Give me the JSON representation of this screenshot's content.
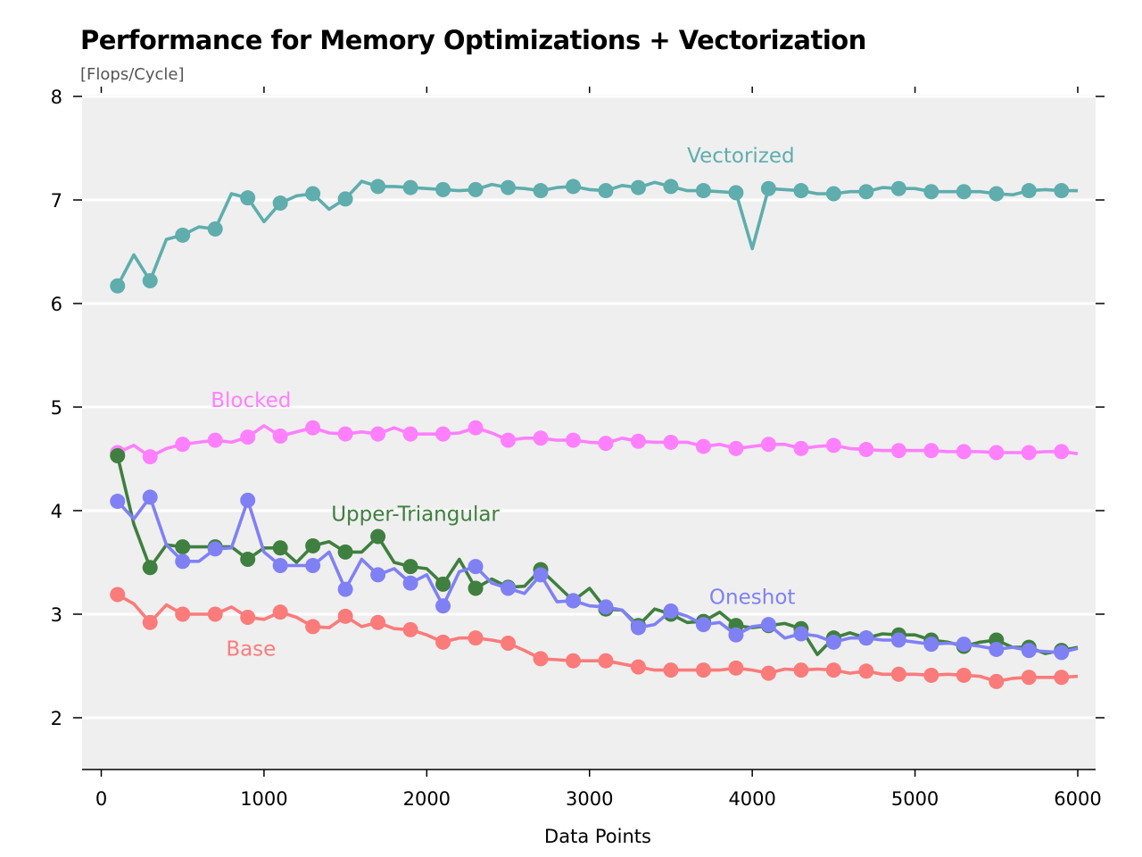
{
  "chart_data": {
    "type": "line",
    "title": "Performance for Memory Optimizations + Vectorization",
    "ylabel": "[Flops/Cycle]",
    "xlabel": "Data Points",
    "xlim": [
      0,
      6100
    ],
    "ylim": [
      1.5,
      8
    ],
    "x_ticks": [
      0,
      1000,
      2000,
      3000,
      4000,
      5000,
      6000
    ],
    "y_ticks": [
      2,
      3,
      4,
      5,
      6,
      7,
      8
    ],
    "grid": "horizontal",
    "legend": "inline labels",
    "background": "#efefef",
    "series": [
      {
        "name": "Vectorized",
        "color": "#5fadad",
        "label_at": [
          3930,
          7.36
        ],
        "x": [
          100,
          200,
          300,
          400,
          500,
          600,
          700,
          800,
          900,
          1000,
          1100,
          1200,
          1300,
          1400,
          1500,
          1600,
          1700,
          1800,
          1900,
          2000,
          2100,
          2200,
          2300,
          2400,
          2500,
          2600,
          2700,
          2800,
          2900,
          3000,
          3100,
          3200,
          3300,
          3400,
          3500,
          3600,
          3700,
          3800,
          3900,
          4000,
          4100,
          4200,
          4300,
          4400,
          4500,
          4600,
          4700,
          4800,
          4900,
          5000,
          5100,
          5200,
          5300,
          5400,
          5500,
          5600,
          5700,
          5800,
          5900,
          6000
        ],
        "y": [
          6.17,
          6.47,
          6.22,
          6.62,
          6.66,
          6.74,
          6.72,
          7.06,
          7.02,
          6.79,
          6.97,
          7.04,
          7.06,
          6.91,
          7.01,
          7.18,
          7.13,
          7.13,
          7.12,
          7.11,
          7.1,
          7.09,
          7.1,
          7.15,
          7.12,
          7.11,
          7.09,
          7.12,
          7.13,
          7.1,
          7.09,
          7.14,
          7.12,
          7.17,
          7.13,
          7.09,
          7.09,
          7.08,
          7.07,
          6.53,
          7.11,
          7.1,
          7.09,
          7.06,
          7.06,
          7.08,
          7.08,
          7.12,
          7.11,
          7.11,
          7.08,
          7.08,
          7.08,
          7.08,
          7.06,
          7.05,
          7.09,
          7.1,
          7.09,
          7.09
        ]
      },
      {
        "name": "Blocked",
        "color": "#ff80ff",
        "label_at": [
          920,
          5.0
        ],
        "x": [
          100,
          200,
          300,
          400,
          500,
          600,
          700,
          800,
          900,
          1000,
          1100,
          1200,
          1300,
          1400,
          1500,
          1600,
          1700,
          1800,
          1900,
          2000,
          2100,
          2200,
          2300,
          2400,
          2500,
          2600,
          2700,
          2800,
          2900,
          3000,
          3100,
          3200,
          3300,
          3400,
          3500,
          3600,
          3700,
          3800,
          3900,
          4000,
          4100,
          4200,
          4300,
          4400,
          4500,
          4600,
          4700,
          4800,
          4900,
          5000,
          5100,
          5200,
          5300,
          5400,
          5500,
          5600,
          5700,
          5800,
          5900,
          6000
        ],
        "y": [
          4.56,
          4.63,
          4.52,
          4.6,
          4.64,
          4.66,
          4.68,
          4.66,
          4.71,
          4.82,
          4.72,
          4.76,
          4.8,
          4.75,
          4.74,
          4.76,
          4.74,
          4.8,
          4.74,
          4.74,
          4.74,
          4.75,
          4.8,
          4.75,
          4.68,
          4.7,
          4.7,
          4.68,
          4.68,
          4.66,
          4.65,
          4.7,
          4.67,
          4.66,
          4.66,
          4.66,
          4.62,
          4.64,
          4.6,
          4.62,
          4.64,
          4.64,
          4.6,
          4.62,
          4.63,
          4.6,
          4.59,
          4.58,
          4.58,
          4.58,
          4.58,
          4.57,
          4.57,
          4.57,
          4.56,
          4.56,
          4.56,
          4.57,
          4.57,
          4.55
        ]
      },
      {
        "name": "Upper-Triangular",
        "color": "#3f7f3f",
        "label_at": [
          1930,
          3.9
        ],
        "x": [
          100,
          200,
          300,
          400,
          500,
          600,
          700,
          800,
          900,
          1000,
          1100,
          1200,
          1300,
          1400,
          1500,
          1600,
          1700,
          1800,
          1900,
          2000,
          2100,
          2200,
          2300,
          2400,
          2500,
          2600,
          2700,
          2800,
          2900,
          3000,
          3100,
          3200,
          3300,
          3400,
          3500,
          3600,
          3700,
          3800,
          3900,
          4000,
          4100,
          4200,
          4300,
          4400,
          4500,
          4600,
          4700,
          4800,
          4900,
          5000,
          5100,
          5200,
          5300,
          5400,
          5500,
          5600,
          5700,
          5800,
          5900,
          6000
        ],
        "y": [
          4.53,
          3.87,
          3.45,
          3.67,
          3.65,
          3.65,
          3.65,
          3.65,
          3.53,
          3.64,
          3.64,
          3.5,
          3.66,
          3.7,
          3.6,
          3.6,
          3.75,
          3.5,
          3.46,
          3.44,
          3.29,
          3.53,
          3.25,
          3.34,
          3.26,
          3.27,
          3.43,
          3.28,
          3.13,
          3.25,
          3.05,
          3.04,
          2.89,
          3.05,
          3.0,
          2.92,
          2.93,
          3.02,
          2.89,
          2.87,
          2.89,
          2.91,
          2.86,
          2.61,
          2.77,
          2.82,
          2.77,
          2.81,
          2.8,
          2.8,
          2.75,
          2.73,
          2.69,
          2.73,
          2.75,
          2.68,
          2.68,
          2.62,
          2.65,
          2.68
        ]
      },
      {
        "name": "Oneshot",
        "color": "#8080f5",
        "label_at": [
          4000,
          3.1
        ],
        "x": [
          100,
          200,
          300,
          400,
          500,
          600,
          700,
          800,
          900,
          1000,
          1100,
          1200,
          1300,
          1400,
          1500,
          1600,
          1700,
          1800,
          1900,
          2000,
          2100,
          2200,
          2300,
          2400,
          2500,
          2600,
          2700,
          2800,
          2900,
          3000,
          3100,
          3200,
          3300,
          3400,
          3500,
          3600,
          3700,
          3800,
          3900,
          4000,
          4100,
          4200,
          4300,
          4400,
          4500,
          4600,
          4700,
          4800,
          4900,
          5000,
          5100,
          5200,
          5300,
          5400,
          5500,
          5600,
          5700,
          5800,
          5900,
          6000
        ],
        "y": [
          4.09,
          3.92,
          4.13,
          3.67,
          3.51,
          3.51,
          3.63,
          3.64,
          4.1,
          3.6,
          3.47,
          3.47,
          3.47,
          3.6,
          3.24,
          3.53,
          3.38,
          3.44,
          3.3,
          3.38,
          3.08,
          3.41,
          3.46,
          3.3,
          3.25,
          3.2,
          3.38,
          3.12,
          3.13,
          3.08,
          3.07,
          3.04,
          2.87,
          2.9,
          3.03,
          2.98,
          2.9,
          2.92,
          2.8,
          2.88,
          2.9,
          2.77,
          2.81,
          2.79,
          2.73,
          2.77,
          2.77,
          2.75,
          2.75,
          2.73,
          2.71,
          2.72,
          2.71,
          2.69,
          2.66,
          2.68,
          2.65,
          2.64,
          2.63,
          2.67
        ]
      },
      {
        "name": "Base",
        "color": "#fb7b7b",
        "label_at": [
          920,
          2.6
        ],
        "x": [
          100,
          200,
          300,
          400,
          500,
          600,
          700,
          800,
          900,
          1000,
          1100,
          1200,
          1300,
          1400,
          1500,
          1600,
          1700,
          1800,
          1900,
          2000,
          2100,
          2200,
          2300,
          2400,
          2500,
          2600,
          2700,
          2800,
          2900,
          3000,
          3100,
          3200,
          3300,
          3400,
          3500,
          3600,
          3700,
          3800,
          3900,
          4000,
          4100,
          4200,
          4300,
          4400,
          4500,
          4600,
          4700,
          4800,
          4900,
          5000,
          5100,
          5200,
          5300,
          5400,
          5500,
          5600,
          5700,
          5800,
          5900,
          6000
        ],
        "y": [
          3.19,
          3.1,
          2.92,
          3.09,
          3.0,
          3.0,
          3.0,
          3.07,
          2.97,
          2.95,
          3.02,
          2.97,
          2.88,
          2.87,
          2.98,
          2.88,
          2.92,
          2.86,
          2.85,
          2.8,
          2.73,
          2.77,
          2.77,
          2.75,
          2.72,
          2.65,
          2.57,
          2.56,
          2.55,
          2.55,
          2.55,
          2.52,
          2.49,
          2.46,
          2.46,
          2.46,
          2.46,
          2.46,
          2.48,
          2.46,
          2.43,
          2.47,
          2.46,
          2.47,
          2.46,
          2.43,
          2.45,
          2.42,
          2.42,
          2.42,
          2.41,
          2.42,
          2.41,
          2.4,
          2.35,
          2.38,
          2.39,
          2.39,
          2.39,
          2.4
        ]
      }
    ]
  }
}
